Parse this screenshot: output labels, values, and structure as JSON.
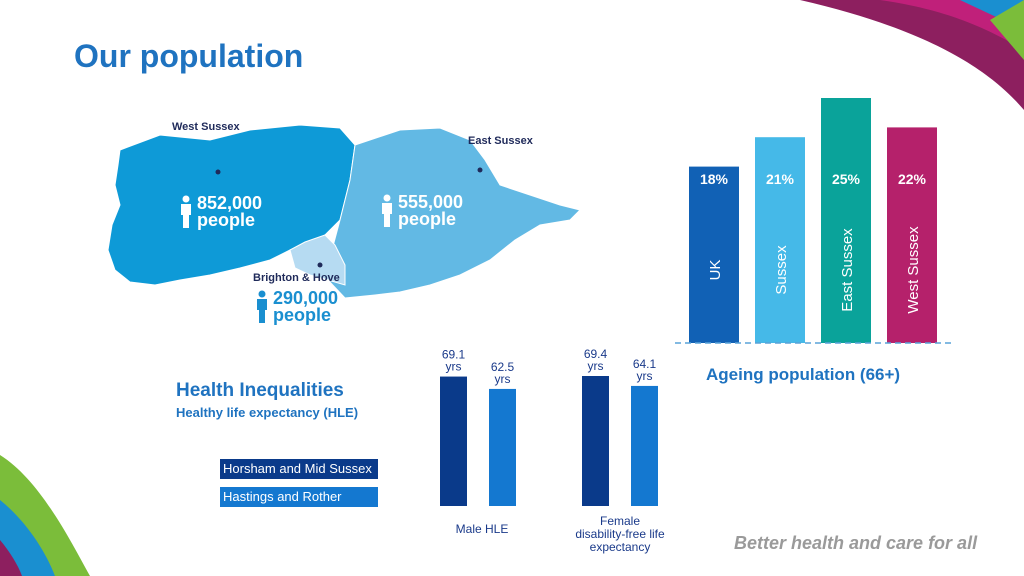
{
  "page": {
    "title": "Our population",
    "tagline": "Better health and care for all"
  },
  "map": {
    "regions": [
      {
        "name": "West Sussex",
        "population": "852,000",
        "unit": "people",
        "color": "#0e9ad7"
      },
      {
        "name": "East Sussex",
        "population": "555,000",
        "unit": "people",
        "color": "#62b9e4"
      },
      {
        "name": "Brighton & Hove",
        "population": "290,000",
        "unit": "people",
        "color": "#b6dbf2"
      }
    ]
  },
  "health_inequalities": {
    "title": "Health Inequalities",
    "subtitle": "Healthy life expectancy (HLE)"
  },
  "ageing": {
    "title": "Ageing population (66+)"
  },
  "chart_data": [
    {
      "type": "bar",
      "title": "Ageing population (66+)",
      "categories": [
        "UK",
        "Sussex",
        "East Sussex",
        "West Sussex"
      ],
      "values": [
        18,
        21,
        25,
        22
      ],
      "value_labels": [
        "18%",
        "21%",
        "25%",
        "22%"
      ],
      "colors": [
        "#1161b5",
        "#45b9e8",
        "#0aa39a",
        "#b5216b"
      ],
      "unit": "%",
      "grid": false
    },
    {
      "type": "bar",
      "title": "Health Inequalities",
      "subtitle": "Healthy life expectancy (HLE)",
      "categories": [
        "Male HLE",
        "Female disability-free life expectancy"
      ],
      "series": [
        {
          "name": "Horsham and Mid Sussex",
          "color": "#0a3a8a",
          "values": [
            69.1,
            69.4
          ],
          "labels": [
            "69.1",
            "69.4"
          ]
        },
        {
          "name": "Hastings and Rother",
          "color": "#1478d0",
          "values": [
            62.5,
            64.1
          ],
          "labels": [
            "62.5",
            "64.1"
          ]
        }
      ],
      "value_unit": "yrs",
      "legend": "left"
    }
  ]
}
